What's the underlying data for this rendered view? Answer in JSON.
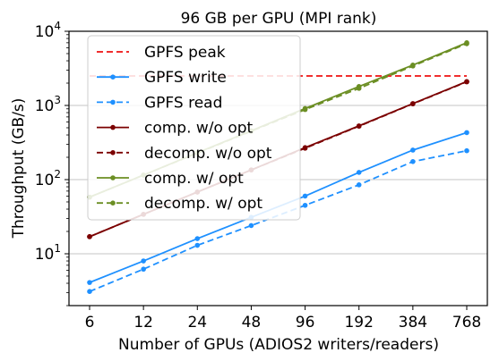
{
  "chart_data": {
    "type": "line",
    "title": "96 GB per GPU (MPI rank)",
    "xlabel": "Number of GPUs (ADIOS2 writers/readers)",
    "ylabel": "Throughput (GB/s)",
    "x_scale": "log2",
    "y_scale": "log10",
    "x": [
      6,
      12,
      24,
      48,
      96,
      192,
      384,
      768
    ],
    "x_tick_labels": [
      "6",
      "12",
      "24",
      "48",
      "96",
      "192",
      "384",
      "768"
    ],
    "ylim": [
      2,
      10000
    ],
    "y_ticks": [
      10,
      100,
      1000,
      10000
    ],
    "y_tick_labels": [
      {
        "base": "10",
        "exp": "1"
      },
      {
        "base": "10",
        "exp": "2"
      },
      {
        "base": "10",
        "exp": "3"
      },
      {
        "base": "10",
        "exp": "4"
      }
    ],
    "grid": "horizontal major",
    "legend_position": "upper-left",
    "series": [
      {
        "name": "GPFS peak",
        "color": "#ee1111",
        "dash": true,
        "markers": false,
        "values": [
          2500,
          2500,
          2500,
          2500,
          2500,
          2500,
          2500,
          2500
        ]
      },
      {
        "name": "GPFS write",
        "color": "#1e90ff",
        "dash": false,
        "markers": true,
        "values": [
          4.1,
          8.0,
          16,
          31,
          60,
          125,
          250,
          430
        ]
      },
      {
        "name": "GPFS read",
        "color": "#1e90ff",
        "dash": true,
        "markers": true,
        "values": [
          3.1,
          6.2,
          13,
          24,
          45,
          85,
          175,
          245
        ]
      },
      {
        "name": "comp. w/o opt",
        "color": "#7b0000",
        "dash": false,
        "markers": true,
        "values": [
          17,
          34,
          68,
          135,
          270,
          530,
          1060,
          2100
        ]
      },
      {
        "name": "decomp. w/o opt",
        "color": "#7b0000",
        "dash": true,
        "markers": true,
        "values": [
          17,
          34,
          68,
          135,
          265,
          525,
          1050,
          2080
        ]
      },
      {
        "name": "comp. w/ opt",
        "color": "#6b8e23",
        "dash": false,
        "markers": true,
        "values": [
          58,
          115,
          230,
          455,
          910,
          1800,
          3500,
          7000
        ]
      },
      {
        "name": "decomp. w/ opt",
        "color": "#6b8e23",
        "dash": true,
        "markers": true,
        "values": [
          58,
          115,
          228,
          450,
          880,
          1700,
          3400,
          6800
        ]
      }
    ]
  }
}
